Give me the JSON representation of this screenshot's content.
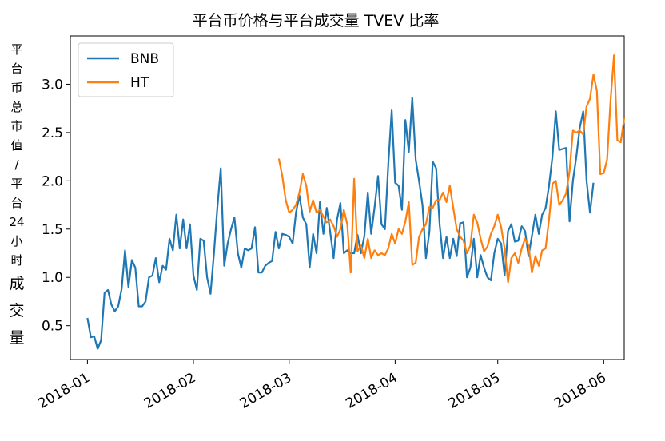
{
  "chart_data": {
    "type": "line",
    "title": "平台币价格与平台成交量 TVEV 比率",
    "ylabel": "平台币总市值/平台24小时成交量",
    "ylabel_chars": [
      "平",
      "台",
      "币",
      "总",
      "市",
      "值",
      "/",
      "平",
      "台",
      "24",
      "小",
      "时",
      "成",
      "交",
      "量"
    ],
    "xlabel": "",
    "x_ticks": [
      "2018-01",
      "2018-02",
      "2018-03",
      "2018-04",
      "2018-05",
      "2018-06"
    ],
    "y_ticks": [
      "0.5",
      "1.0",
      "1.5",
      "2.0",
      "2.5",
      "3.0"
    ],
    "ylim": [
      0.15,
      3.5
    ],
    "legend_position": "top-left",
    "grid": false,
    "series": [
      {
        "name": "BNB",
        "color": "#1f77b4",
        "start": "2018-01-01",
        "values": [
          0.58,
          0.38,
          0.39,
          0.26,
          0.35,
          0.84,
          0.87,
          0.72,
          0.65,
          0.7,
          0.88,
          1.28,
          0.9,
          1.18,
          1.1,
          0.7,
          0.7,
          0.75,
          1.0,
          1.02,
          1.2,
          0.95,
          1.12,
          1.08,
          1.4,
          1.28,
          1.65,
          1.3,
          1.6,
          1.3,
          1.55,
          1.02,
          0.87,
          1.4,
          1.38,
          1.0,
          0.83,
          1.25,
          1.72,
          2.13,
          1.12,
          1.35,
          1.5,
          1.62,
          1.25,
          1.1,
          1.3,
          1.28,
          1.3,
          1.52,
          1.05,
          1.05,
          1.12,
          1.15,
          1.17,
          1.47,
          1.3,
          1.45,
          1.44,
          1.42,
          1.35,
          1.67,
          1.85,
          1.62,
          1.55,
          1.1,
          1.45,
          1.25,
          1.78,
          1.45,
          1.72,
          1.47,
          1.2,
          1.6,
          1.77,
          1.25,
          1.28,
          1.25,
          1.25,
          1.44,
          1.25,
          1.43,
          1.88,
          1.45,
          1.73,
          2.05,
          1.55,
          1.5,
          2.17,
          2.73,
          1.98,
          1.95,
          1.7,
          2.63,
          2.3,
          2.86,
          2.22,
          2.0,
          1.75,
          1.2,
          1.47,
          2.2,
          2.13,
          1.55,
          1.2,
          1.42,
          1.2,
          1.4,
          1.22,
          1.56,
          1.57,
          1.0,
          1.1,
          1.4,
          1.0,
          1.23,
          1.1,
          1.0,
          0.97,
          1.25,
          1.4,
          1.35,
          1.02,
          1.48,
          1.55,
          1.37,
          1.38,
          1.53,
          1.48,
          1.22,
          1.43,
          1.65,
          1.45,
          1.65,
          1.72,
          1.95,
          2.25,
          2.72,
          2.32,
          2.33,
          2.34,
          1.58,
          2.0,
          2.25,
          2.55,
          2.72,
          2.0,
          1.67,
          1.98
        ]
      },
      {
        "name": "HT",
        "color": "#ff7f0e",
        "start": "2018-02-26",
        "values": [
          2.23,
          2.05,
          1.8,
          1.67,
          1.7,
          1.75,
          1.88,
          2.07,
          1.95,
          1.68,
          1.8,
          1.67,
          1.7,
          1.63,
          1.57,
          1.6,
          1.53,
          1.42,
          1.5,
          1.7,
          1.55,
          1.05,
          2.02,
          1.27,
          1.33,
          1.2,
          1.4,
          1.2,
          1.28,
          1.23,
          1.25,
          1.23,
          1.3,
          1.45,
          1.35,
          1.5,
          1.45,
          1.58,
          1.78,
          1.13,
          1.15,
          1.42,
          1.5,
          1.55,
          1.73,
          1.72,
          1.8,
          1.8,
          1.88,
          1.78,
          1.95,
          1.72,
          1.5,
          1.42,
          1.38,
          1.25,
          1.33,
          1.65,
          1.57,
          1.4,
          1.27,
          1.32,
          1.45,
          1.53,
          1.65,
          1.52,
          1.3,
          0.95,
          1.2,
          1.25,
          1.15,
          1.3,
          1.4,
          1.33,
          1.05,
          1.22,
          1.12,
          1.28,
          1.3,
          1.6,
          1.97,
          2.0,
          1.75,
          1.8,
          1.87,
          2.1,
          2.52,
          2.5,
          2.52,
          2.48,
          2.77,
          2.85,
          3.1,
          2.93,
          2.07,
          2.08,
          2.22,
          2.83,
          3.3,
          2.42,
          2.4,
          2.65
        ]
      }
    ]
  }
}
